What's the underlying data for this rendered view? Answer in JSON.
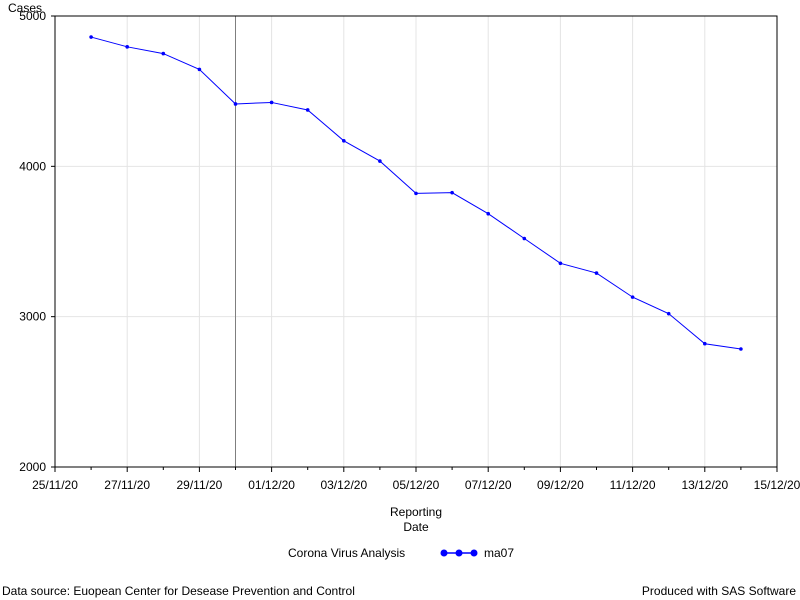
{
  "chart_data": {
    "type": "line",
    "ylabel": "Cases",
    "xlabel_lines": [
      "Reporting",
      "Date"
    ],
    "ylim": [
      2000,
      5000
    ],
    "yticks": [
      2000,
      3000,
      4000,
      5000
    ],
    "xlim": [
      "25/11/20",
      "15/12/20"
    ],
    "xticks": [
      "25/11/20",
      "27/11/20",
      "29/11/20",
      "01/12/20",
      "03/12/20",
      "05/12/20",
      "07/12/20",
      "09/12/20",
      "11/12/20",
      "13/12/20",
      "15/12/20"
    ],
    "reference_line_date": "30/11/20",
    "grid": true,
    "legend_position": "bottom",
    "legend_label": "Corona Virus Analysis",
    "series": [
      {
        "name": "ma07",
        "color": "#0000ff",
        "x": [
          "26/11/20",
          "27/11/20",
          "28/11/20",
          "29/11/20",
          "30/11/20",
          "01/12/20",
          "02/12/20",
          "03/12/20",
          "04/12/20",
          "05/12/20",
          "06/12/20",
          "07/12/20",
          "08/12/20",
          "09/12/20",
          "10/12/20",
          "11/12/20",
          "12/12/20",
          "13/12/20",
          "14/12/20"
        ],
        "y": [
          4860,
          4795,
          4750,
          4645,
          4415,
          4425,
          4375,
          4170,
          4035,
          3820,
          3825,
          3685,
          3520,
          3355,
          3290,
          3130,
          3020,
          2820,
          2785
        ]
      }
    ]
  },
  "footer": {
    "source": "Data source: Euopean Center for Desease Prevention and Control",
    "produced": "Produced with SAS Software"
  }
}
